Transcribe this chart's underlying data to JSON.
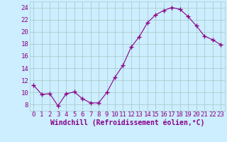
{
  "x": [
    0,
    1,
    2,
    3,
    4,
    5,
    6,
    7,
    8,
    9,
    10,
    11,
    12,
    13,
    14,
    15,
    16,
    17,
    18,
    19,
    20,
    21,
    22,
    23
  ],
  "y": [
    11.2,
    9.7,
    9.8,
    7.8,
    9.8,
    10.1,
    9.0,
    8.3,
    8.3,
    10.0,
    12.5,
    14.5,
    17.5,
    19.2,
    21.5,
    22.8,
    23.5,
    24.0,
    23.7,
    22.5,
    21.0,
    19.3,
    18.7,
    17.9
  ],
  "line_color": "#880088",
  "marker": "+",
  "marker_size": 4,
  "bg_color": "#cceeff",
  "grid_color": "#aacccc",
  "xlabel": "Windchill (Refroidissement éolien,°C)",
  "xlabel_color": "#880088",
  "xlabel_fontsize": 7,
  "tick_color": "#880088",
  "tick_fontsize": 6.5,
  "ylim": [
    7,
    25
  ],
  "xlim": [
    -0.5,
    23.5
  ],
  "yticks": [
    8,
    10,
    12,
    14,
    16,
    18,
    20,
    22,
    24
  ],
  "xticks": [
    0,
    1,
    2,
    3,
    4,
    5,
    6,
    7,
    8,
    9,
    10,
    11,
    12,
    13,
    14,
    15,
    16,
    17,
    18,
    19,
    20,
    21,
    22,
    23
  ]
}
